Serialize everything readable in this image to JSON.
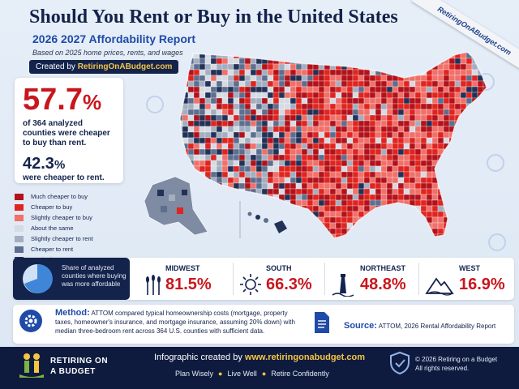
{
  "header": {
    "title": "Should You Rent or Buy in the United States",
    "subtitle": "2026 2027 Affordability Report",
    "based_on": "Based on 2025 home prices, rents, and wages",
    "created_prefix": "Created by ",
    "created_site": "RetiringOnABudget.com",
    "ribbon": "RetiringOnABudget.com"
  },
  "stats": {
    "buy_pct": "57.7",
    "buy_pct_sign": "%",
    "buy_desc": "of 364 analyzed counties were cheaper to buy than rent.",
    "rent_pct": "42.3",
    "rent_pct_sign": "%",
    "rent_desc": "were cheaper to rent."
  },
  "legend": [
    {
      "label": "Much cheaper to buy",
      "color": "#b3121b"
    },
    {
      "label": "Cheaper to buy",
      "color": "#e0241f"
    },
    {
      "label": "Slightly cheaper to buy",
      "color": "#f0706a"
    },
    {
      "label": "About the same",
      "color": "#d6dbe3"
    },
    {
      "label": "Slightly cheaper to rent",
      "color": "#a3aec0"
    },
    {
      "label": "Cheaper to rent",
      "color": "#5d6f90"
    },
    {
      "label": "Much cheaper to rent",
      "color": "#223257"
    }
  ],
  "share": {
    "text": "Share of analyzed counties where buying was more affordable"
  },
  "regions": [
    {
      "name": "MIDWEST",
      "value": "81.5%",
      "icon": "wheat-icon"
    },
    {
      "name": "SOUTH",
      "value": "66.3%",
      "icon": "sun-icon"
    },
    {
      "name": "NORTHEAST",
      "value": "48.8%",
      "icon": "lighthouse-icon"
    },
    {
      "name": "WEST",
      "value": "16.9%",
      "icon": "mountain-icon"
    }
  ],
  "method": {
    "heading": "Method:",
    "text": "ATTOM compared typical homeownership costs (mortgage, property taxes, homeowner's insurance, and mortgage insurance, assuming 20% down) with median three-bedroom rent across 364 U.S. counties with sufficient data."
  },
  "source": {
    "heading": "Source:",
    "text": "ATTOM, 2026 Rental Affordability Report"
  },
  "footer": {
    "brand_line1": "RETIRING ON",
    "brand_line2": "A BUDGET",
    "created_prefix": "Infographic created by ",
    "created_site": "www.retiringonabudget.com",
    "tag1": "Plan Wisely",
    "tag2": "Live Well",
    "tag3": "Retire Confidently",
    "copyright": "© 2026 Retiring on a Budget",
    "rights": "All rights reserved."
  },
  "colors": {
    "buy": "#d91f1f",
    "rent": "#223257",
    "accent_blue": "#1f4aa8",
    "navy": "#13234c",
    "gold": "#f4c542"
  }
}
